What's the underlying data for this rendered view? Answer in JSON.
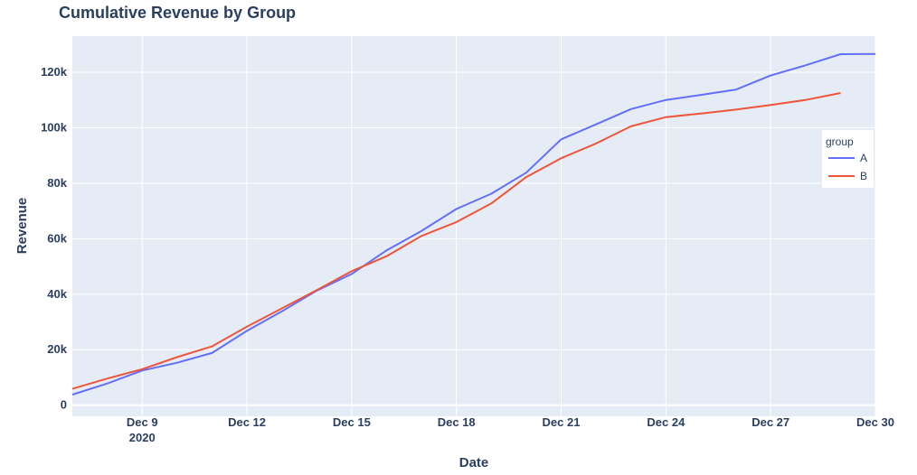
{
  "chart_data": {
    "type": "line",
    "title": "Cumulative Revenue by Group",
    "xlabel": "Date",
    "ylabel": "Revenue",
    "x_axis": {
      "type": "date",
      "range": [
        "2020-12-07",
        "2020-12-30"
      ],
      "ticks": [
        {
          "date": "2020-12-09",
          "label": "Dec 9",
          "sublabel": "2020"
        },
        {
          "date": "2020-12-12",
          "label": "Dec 12",
          "sublabel": ""
        },
        {
          "date": "2020-12-15",
          "label": "Dec 15",
          "sublabel": ""
        },
        {
          "date": "2020-12-18",
          "label": "Dec 18",
          "sublabel": ""
        },
        {
          "date": "2020-12-21",
          "label": "Dec 21",
          "sublabel": ""
        },
        {
          "date": "2020-12-24",
          "label": "Dec 24",
          "sublabel": ""
        },
        {
          "date": "2020-12-27",
          "label": "Dec 27",
          "sublabel": ""
        },
        {
          "date": "2020-12-30",
          "label": "Dec 30",
          "sublabel": ""
        }
      ]
    },
    "y_axis": {
      "range": [
        -4000,
        133000
      ],
      "ticks": [
        {
          "value": 0,
          "label": "0"
        },
        {
          "value": 20000,
          "label": "20k"
        },
        {
          "value": 40000,
          "label": "40k"
        },
        {
          "value": 60000,
          "label": "60k"
        },
        {
          "value": 80000,
          "label": "80k"
        },
        {
          "value": 100000,
          "label": "100k"
        },
        {
          "value": 120000,
          "label": "120k"
        }
      ]
    },
    "grid": true,
    "legend": {
      "title": "group",
      "position": "right"
    },
    "series": [
      {
        "name": "A",
        "color": "#636efa",
        "points": [
          {
            "x": "2020-12-07",
            "y": 3800
          },
          {
            "x": "2020-12-08",
            "y": 7800
          },
          {
            "x": "2020-12-09",
            "y": 12500
          },
          {
            "x": "2020-12-10",
            "y": 15300
          },
          {
            "x": "2020-12-11",
            "y": 18800
          },
          {
            "x": "2020-12-12",
            "y": 26800
          },
          {
            "x": "2020-12-13",
            "y": 33800
          },
          {
            "x": "2020-12-14",
            "y": 41300
          },
          {
            "x": "2020-12-15",
            "y": 47300
          },
          {
            "x": "2020-12-16",
            "y": 55800
          },
          {
            "x": "2020-12-17",
            "y": 62800
          },
          {
            "x": "2020-12-18",
            "y": 70700
          },
          {
            "x": "2020-12-19",
            "y": 76200
          },
          {
            "x": "2020-12-20",
            "y": 83800
          },
          {
            "x": "2020-12-21",
            "y": 95800
          },
          {
            "x": "2020-12-22",
            "y": 101200
          },
          {
            "x": "2020-12-23",
            "y": 106700
          },
          {
            "x": "2020-12-24",
            "y": 110000
          },
          {
            "x": "2020-12-25",
            "y": 111800
          },
          {
            "x": "2020-12-26",
            "y": 113700
          },
          {
            "x": "2020-12-27",
            "y": 118800
          },
          {
            "x": "2020-12-28",
            "y": 122500
          },
          {
            "x": "2020-12-29",
            "y": 126500
          },
          {
            "x": "2020-12-30",
            "y": 126600
          }
        ]
      },
      {
        "name": "B",
        "color": "#ef553b",
        "points": [
          {
            "x": "2020-12-07",
            "y": 5900
          },
          {
            "x": "2020-12-08",
            "y": 9600
          },
          {
            "x": "2020-12-09",
            "y": 13000
          },
          {
            "x": "2020-12-10",
            "y": 17300
          },
          {
            "x": "2020-12-11",
            "y": 21200
          },
          {
            "x": "2020-12-12",
            "y": 28300
          },
          {
            "x": "2020-12-13",
            "y": 34900
          },
          {
            "x": "2020-12-14",
            "y": 41500
          },
          {
            "x": "2020-12-15",
            "y": 48300
          },
          {
            "x": "2020-12-16",
            "y": 53700
          },
          {
            "x": "2020-12-17",
            "y": 61000
          },
          {
            "x": "2020-12-18",
            "y": 66000
          },
          {
            "x": "2020-12-19",
            "y": 72700
          },
          {
            "x": "2020-12-20",
            "y": 82200
          },
          {
            "x": "2020-12-21",
            "y": 89000
          },
          {
            "x": "2020-12-22",
            "y": 94300
          },
          {
            "x": "2020-12-23",
            "y": 100500
          },
          {
            "x": "2020-12-24",
            "y": 103800
          },
          {
            "x": "2020-12-25",
            "y": 105100
          },
          {
            "x": "2020-12-26",
            "y": 106500
          },
          {
            "x": "2020-12-27",
            "y": 108200
          },
          {
            "x": "2020-12-28",
            "y": 110000
          },
          {
            "x": "2020-12-29",
            "y": 112500
          }
        ]
      }
    ]
  }
}
